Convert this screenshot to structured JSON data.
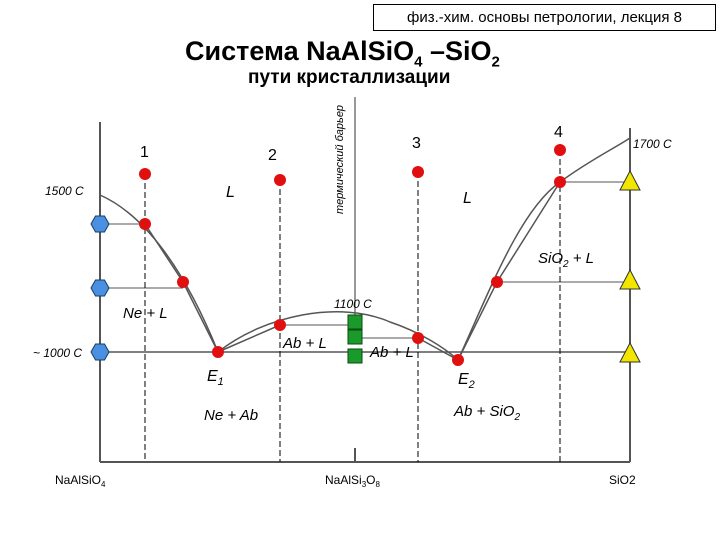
{
  "header": {
    "text": "физ.-хим. основы петрологии, лекция 8"
  },
  "title": {
    "main": "Система NaAlSiO",
    "sub1": "4",
    "mid": " –SiO",
    "sub2": "2"
  },
  "subtitle": "пути кристаллизации",
  "barrier_label": "термический барьер",
  "temperatures": {
    "t1500": "1500 C",
    "t1700": "1700 C",
    "t1100": "1100 C",
    "t1000": "~ 1000 C"
  },
  "path_numbers": {
    "p1": "1",
    "p2": "2",
    "p3": "3",
    "p4": "4"
  },
  "fields": {
    "liquid_left": "L",
    "liquid_right": "L",
    "sio2_l_main": "SiO",
    "sio2_l_sub": "2",
    "sio2_l_rest": " + L",
    "ne_l": "Ne + L",
    "ab_l_left": "Ab + L",
    "ab_l_right": "Ab + L",
    "ne_ab": "Ne + Ab",
    "ab_sio2_main": "Ab + SiO",
    "ab_sio2_sub": "2"
  },
  "eutectics": {
    "e1_main": "E",
    "e1_sub": "1",
    "e2_main": "E",
    "e2_sub": "2"
  },
  "composition_axis": {
    "left_main": "NaAlSiO",
    "left_sub": "4",
    "mid_main": "NaAlSi",
    "mid_sub1": "3",
    "mid_mid": "O",
    "mid_sub2": "8",
    "right": "SiO2"
  },
  "colors": {
    "point": "#e01010",
    "hexagon": "#4a90e2",
    "triangle": "#f2e600",
    "rect": "#1a9a2a",
    "line": "#555555"
  }
}
